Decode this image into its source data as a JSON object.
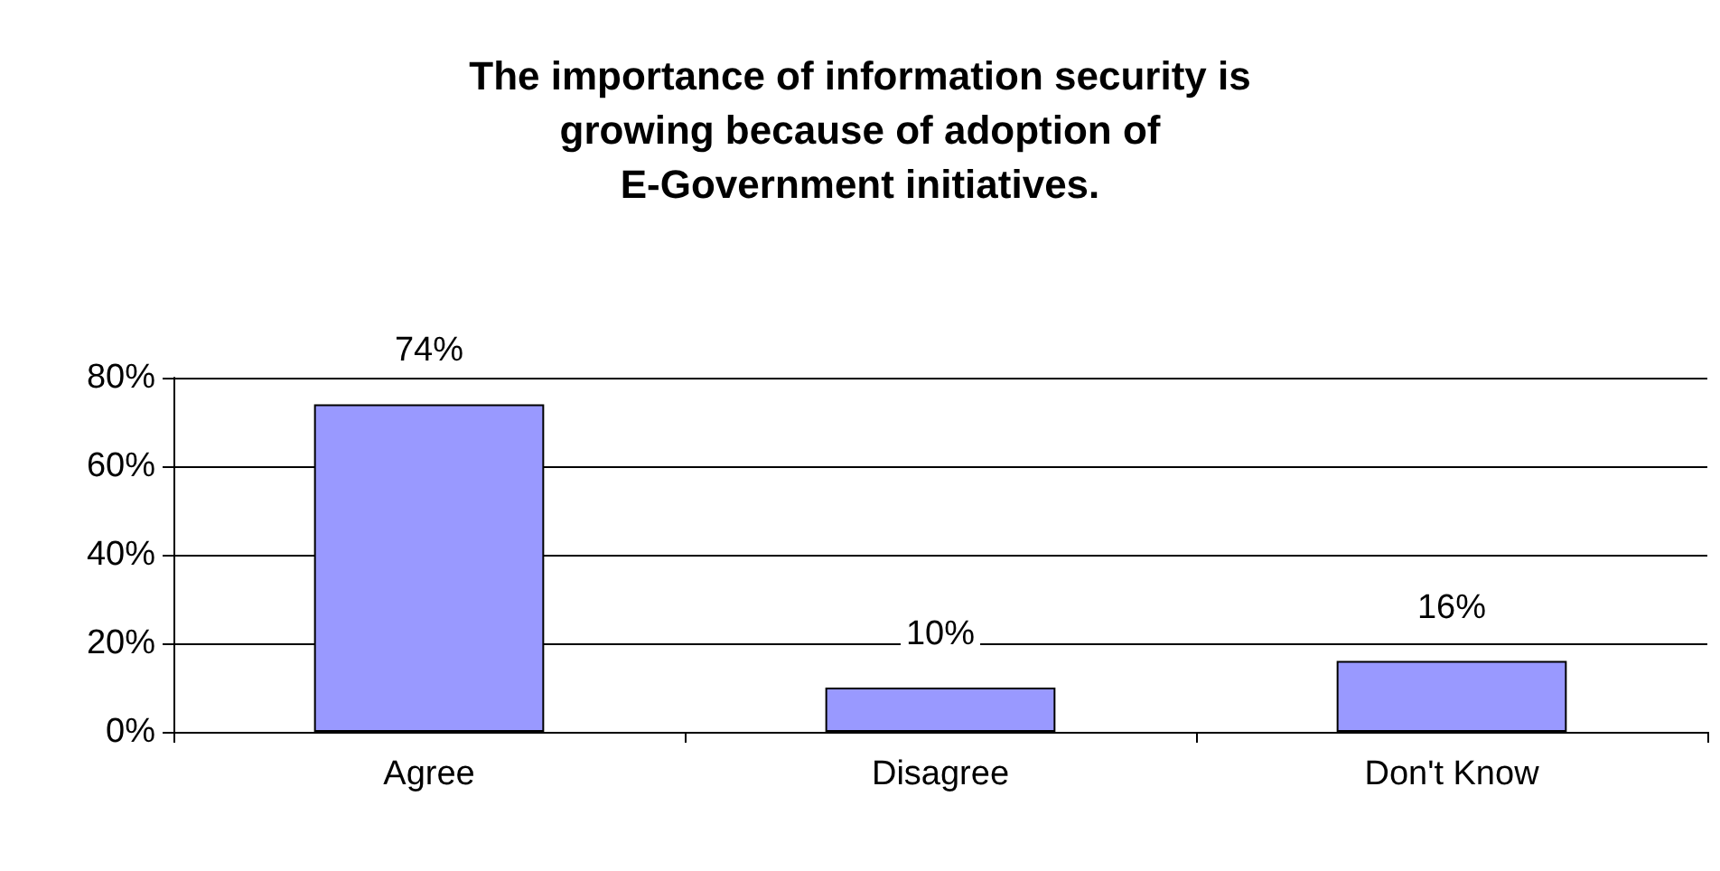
{
  "chart_data": {
    "type": "bar",
    "title": "The importance of information security is\ngrowing because of adoption of\nE-Government initiatives.",
    "categories": [
      "Agree",
      "Disagree",
      "Don't Know"
    ],
    "values": [
      74,
      10,
      16
    ],
    "value_labels": [
      "74%",
      "10%",
      "16%"
    ],
    "color": "#9999ff",
    "ylim": [
      0,
      80
    ],
    "yticks": [
      {
        "value": 0,
        "label": "0%"
      },
      {
        "value": 20,
        "label": "20%"
      },
      {
        "value": 40,
        "label": "40%"
      },
      {
        "value": 60,
        "label": "60%"
      },
      {
        "value": 80,
        "label": "80%"
      }
    ],
    "grid": "y"
  }
}
